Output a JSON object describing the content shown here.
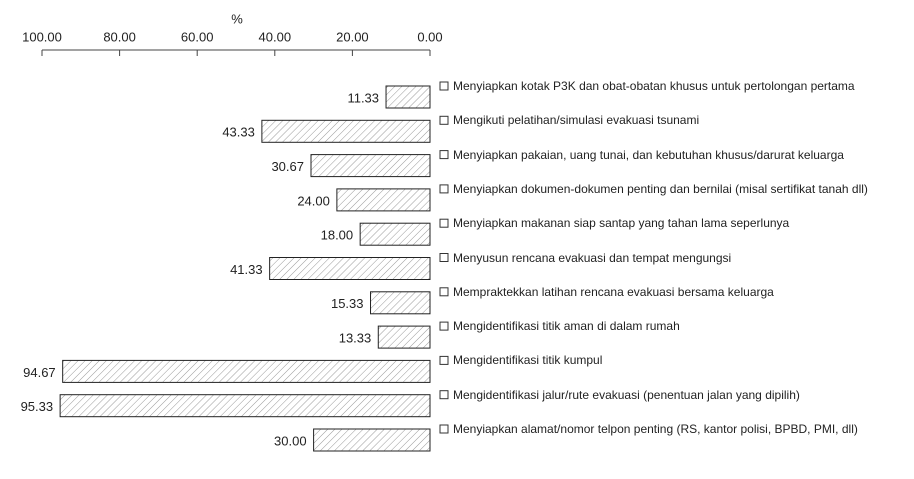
{
  "chart_data": {
    "type": "bar",
    "orientation": "horizontal",
    "x_label": "%",
    "categories": [
      "Menyiapkan kotak P3K dan obat-obatan khusus untuk pertolongan pertama",
      "Mengikuti pelatihan/simulasi evakuasi tsunami",
      "Menyiapkan pakaian, uang tunai, dan kebutuhan khusus/darurat keluarga",
      "Menyiapkan dokumen-dokumen penting dan bernilai (misal sertifikat tanah dll)",
      "Menyiapkan makanan siap santap yang tahan lama seperlunya",
      "Menyusun rencana evakuasi dan tempat mengungsi",
      "Mempraktekkan latihan rencana evakuasi bersama keluarga",
      "Mengidentifikasi titik aman di dalam rumah",
      "Mengidentifikasi titik kumpul",
      "Mengidentifikasi jalur/rute evakuasi (penentuan jalan yang dipilih)",
      "Menyiapkan alamat/nomor telpon penting (RS, kantor polisi, BPBD, PMI, dll)"
    ],
    "values": [
      11.33,
      43.33,
      30.67,
      24.0,
      18.0,
      41.33,
      15.33,
      13.33,
      94.67,
      95.33,
      30.0
    ],
    "value_labels": [
      "11.33",
      "43.33",
      "30.67",
      "24.00",
      "18.00",
      "41.33",
      "15.33",
      "13.33",
      "94.67",
      "95.33",
      "30.00"
    ],
    "xlim": [
      100,
      0
    ],
    "reversed": true,
    "xticks": [
      {
        "value": 100,
        "label": "100.00"
      },
      {
        "value": 80,
        "label": "80.00"
      },
      {
        "value": 60,
        "label": "60.00"
      },
      {
        "value": 40,
        "label": "40.00"
      },
      {
        "value": 20,
        "label": "20.00"
      },
      {
        "value": 0,
        "label": "0.00"
      }
    ],
    "color": "#ffffff",
    "hatch": true,
    "grid": false
  }
}
